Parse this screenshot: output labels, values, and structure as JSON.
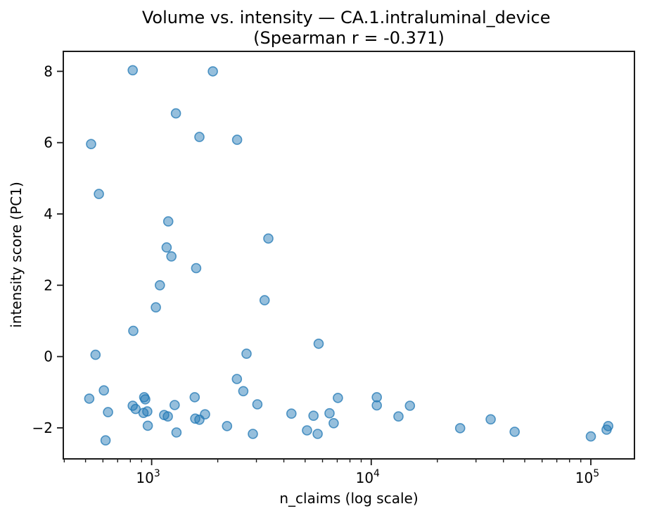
{
  "chart_data": {
    "type": "scatter",
    "title_line1": "Volume vs. intensity — CA.1.intraluminal_device",
    "title_line2": "(Spearman r = -0.371)",
    "spearman_r": -0.371,
    "xlabel": "n_claims (log scale)",
    "ylabel": "intensity score (PC1)",
    "x_scale": "log",
    "grid": false,
    "legend": "none",
    "x_range": [
      396,
      158000
    ],
    "y_range": [
      -2.87,
      8.56
    ],
    "x_major_ticks": [
      {
        "value": 1000,
        "label_base": "10",
        "label_exp": "3"
      },
      {
        "value": 10000,
        "label_base": "10",
        "label_exp": "4"
      },
      {
        "value": 100000,
        "label_base": "10",
        "label_exp": "5"
      }
    ],
    "x_minor_ticks": [
      400,
      500,
      600,
      700,
      800,
      900,
      2000,
      3000,
      4000,
      5000,
      6000,
      7000,
      8000,
      9000,
      20000,
      30000,
      40000,
      50000,
      60000,
      70000,
      80000,
      90000
    ],
    "y_ticks": [
      8,
      6,
      4,
      2,
      0,
      -2
    ],
    "marker": {
      "color": "#1f77b4",
      "fill_opacity": 0.47,
      "stroke_opacity": 0.75,
      "radius": 6.5,
      "stroke_width": 1.6
    },
    "axis_color": "#1a1a1a",
    "points": [
      [
        820,
        8.03
      ],
      [
        1900,
        8.0
      ],
      [
        1290,
        6.82
      ],
      [
        1650,
        6.16
      ],
      [
        2450,
        6.08
      ],
      [
        530,
        5.96
      ],
      [
        575,
        4.56
      ],
      [
        1190,
        3.79
      ],
      [
        3400,
        3.31
      ],
      [
        1170,
        3.06
      ],
      [
        1230,
        2.81
      ],
      [
        1595,
        2.48
      ],
      [
        1090,
        2.0
      ],
      [
        3270,
        1.58
      ],
      [
        1045,
        1.38
      ],
      [
        825,
        0.72
      ],
      [
        5760,
        0.36
      ],
      [
        2705,
        0.08
      ],
      [
        555,
        0.05
      ],
      [
        2445,
        -0.63
      ],
      [
        606,
        -0.95
      ],
      [
        2615,
        -0.97
      ],
      [
        520,
        -1.18
      ],
      [
        925,
        -1.14
      ],
      [
        935,
        -1.2
      ],
      [
        1570,
        -1.14
      ],
      [
        3030,
        -1.34
      ],
      [
        1273,
        -1.36
      ],
      [
        820,
        -1.38
      ],
      [
        845,
        -1.47
      ],
      [
        633,
        -1.56
      ],
      [
        955,
        -1.54
      ],
      [
        918,
        -1.58
      ],
      [
        1140,
        -1.64
      ],
      [
        1185,
        -1.68
      ],
      [
        1750,
        -1.62
      ],
      [
        1580,
        -1.74
      ],
      [
        1650,
        -1.77
      ],
      [
        960,
        -1.94
      ],
      [
        2205,
        -1.95
      ],
      [
        1297,
        -2.13
      ],
      [
        2890,
        -2.17
      ],
      [
        617,
        -2.35
      ],
      [
        4330,
        -1.6
      ],
      [
        5460,
        -1.66
      ],
      [
        6460,
        -1.59
      ],
      [
        6745,
        -1.87
      ],
      [
        7050,
        -1.16
      ],
      [
        5100,
        -2.07
      ],
      [
        5700,
        -2.17
      ],
      [
        10600,
        -1.14
      ],
      [
        10600,
        -1.37
      ],
      [
        13300,
        -1.68
      ],
      [
        15000,
        -1.38
      ],
      [
        25400,
        -2.01
      ],
      [
        35000,
        -1.76
      ],
      [
        45000,
        -2.11
      ],
      [
        100000,
        -2.24
      ],
      [
        118000,
        -2.05
      ],
      [
        120000,
        -1.95
      ]
    ]
  }
}
